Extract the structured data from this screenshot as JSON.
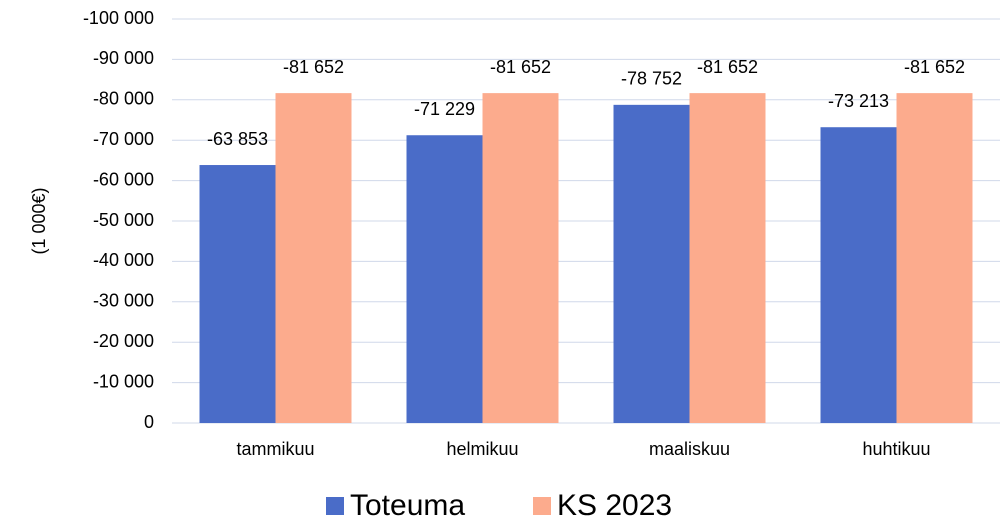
{
  "chart_data": {
    "type": "bar",
    "y_label": "(1 000€)",
    "categories": [
      "tammikuu",
      "helmikuu",
      "maaliskuu",
      "huhtikuu"
    ],
    "series": [
      {
        "name": "Toteuma",
        "color": "#4a6cc8",
        "values": [
          -63853,
          -71229,
          -78752,
          -73213
        ],
        "value_labels": [
          "-63 853",
          "-71 229",
          "-78 752",
          "-73 213"
        ]
      },
      {
        "name": "KS 2023",
        "color": "#fcab8d",
        "values": [
          -81652,
          -81652,
          -81652,
          -81652
        ],
        "value_labels": [
          "-81 652",
          "-81 652",
          "-81 652",
          "-81 652"
        ]
      }
    ],
    "ylim": [
      0,
      -100000
    ],
    "yticks": [
      {
        "value": 0,
        "label": "0"
      },
      {
        "value": -10000,
        "label": "-10 000"
      },
      {
        "value": -20000,
        "label": "-20 000"
      },
      {
        "value": -30000,
        "label": "-30 000"
      },
      {
        "value": -40000,
        "label": "-40 000"
      },
      {
        "value": -50000,
        "label": "-50 000"
      },
      {
        "value": -60000,
        "label": "-60 000"
      },
      {
        "value": -70000,
        "label": "-70 000"
      },
      {
        "value": -80000,
        "label": "-80 000"
      },
      {
        "value": -90000,
        "label": "-90 000"
      },
      {
        "value": -100000,
        "label": "-100 000"
      }
    ],
    "grid": true,
    "legend": "bottom"
  }
}
